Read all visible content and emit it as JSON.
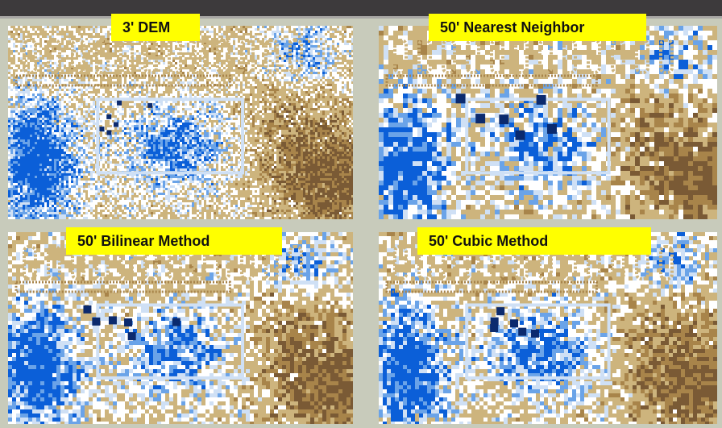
{
  "panels": [
    {
      "label": "3' DEM"
    },
    {
      "label": "50' Nearest Neighbor"
    },
    {
      "label": "50' Bilinear Method"
    },
    {
      "label": "50' Cubic Method"
    }
  ],
  "colors": {
    "background": "#c8cbbb",
    "top_bar": "#3d3a3c",
    "label_bg": "#ffff00",
    "low_elevation": "#0b5fd8",
    "mid_low_elevation": "#6aa3e8",
    "pale_blue": "#cfe0f5",
    "white": "#ffffff",
    "tan": "#cdb47d",
    "dark_tan": "#a8844a",
    "brown": "#7a5a35",
    "navy": "#0b2a6e"
  }
}
